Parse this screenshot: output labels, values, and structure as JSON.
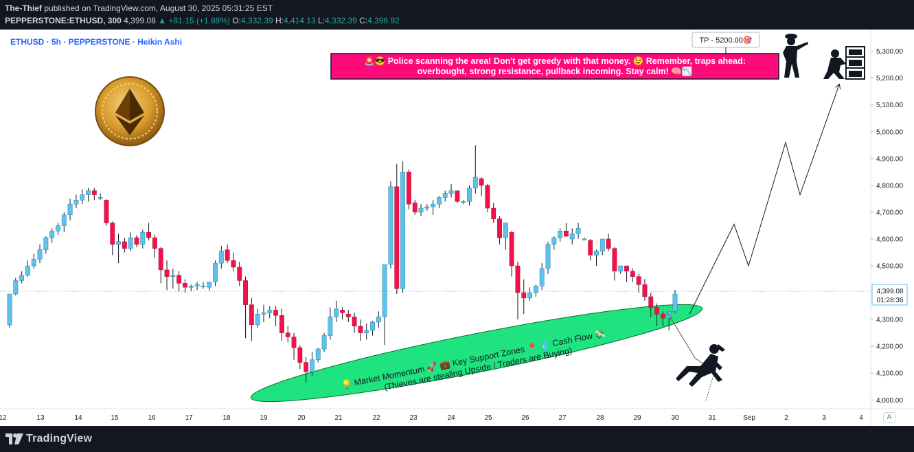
{
  "header": {
    "author": "The-Thief",
    "published_text": "published on TradingView.com, August 30, 2025 05:31:25 EST",
    "symbol": "PEPPERSTONE:ETHUSD, 300",
    "price": "4,399.08",
    "change_arrow": "▲",
    "change": "+81.15 (+1.88%)",
    "open_label": "O:",
    "open": "4,332.39",
    "high_label": "H:",
    "high": "4,414.13",
    "low_label": "L:",
    "low": "4,332.39",
    "close_label": "C:",
    "close": "4,396.92"
  },
  "legend": {
    "title": "ETHUSD · 5h · PEPPERSTONE · Heikin Ashi"
  },
  "annotations": {
    "tp_label": "TP - 5200.00🎯",
    "warning_line1": "🚨😎 Police scanning the area! Don't get greedy with that money. 😉 Remember, traps ahead:",
    "warning_line2": "overbought, strong resistance, pullback incoming. Stay calm! 🧠📉",
    "support_line1": "💡 Market Momentum 🚀 💼 Key Support Zones 📍 💧 Cash Flow 💸",
    "support_line2": "(Thieves are stealing Upside / Traders are Buying)"
  },
  "price_axis": {
    "ticks": [
      "5,300.00",
      "5,200.00",
      "5,100.00",
      "5,000.00",
      "4,900.00",
      "4,800.00",
      "4,700.00",
      "4,600.00",
      "4,500.00",
      "4,400.00",
      "4,300.00",
      "4,200.00",
      "4,100.00",
      "4,000.00"
    ],
    "tick_values": [
      5300,
      5200,
      5100,
      5000,
      4900,
      4800,
      4700,
      4600,
      4500,
      4400,
      4300,
      4200,
      4100,
      4000
    ],
    "last_price": "4,399.08",
    "countdown": "01:28:36",
    "auto_label": "A"
  },
  "time_axis": {
    "labels": [
      "12",
      "13",
      "14",
      "15",
      "16",
      "17",
      "18",
      "19",
      "20",
      "21",
      "22",
      "23",
      "24",
      "25",
      "26",
      "27",
      "28",
      "29",
      "30",
      "31",
      "Sep",
      "2",
      "3",
      "4"
    ]
  },
  "footer": {
    "brand": "TradingView"
  },
  "colors": {
    "up": "#5ec2ec",
    "down": "#f2124a",
    "support_zone": "#1fe37f",
    "warning_bg": "#ff0a7b",
    "last_price_line": "#5ec2ec"
  },
  "icons": [
    "ethereum-coin-icon",
    "police-silhouette-icon",
    "thief-at-safe-icon",
    "climbing-thief-icon",
    "tradingview-logo-icon"
  ],
  "chart_data": {
    "type": "candlestick",
    "title": "ETHUSD · 5h · PEPPERSTONE · Heikin Ashi",
    "ylim": [
      3970,
      5350
    ],
    "projection": [
      {
        "date": "Aug 30",
        "value": 4320
      },
      {
        "date": "Aug 31",
        "value": 4655
      },
      {
        "date": "Sep 1",
        "value": 4500
      },
      {
        "date": "Sep 2",
        "value": 4960
      },
      {
        "date": "Sep 2",
        "value": 4765
      },
      {
        "date": "Sep 3",
        "value": 5175
      }
    ],
    "support_zone": {
      "from": "Aug 19",
      "to": "Aug 30",
      "low": 4060,
      "high": 4280
    },
    "target": 5200,
    "candles": [
      [
        4280,
        4395,
        4270,
        4395
      ],
      [
        4395,
        4455,
        4390,
        4445
      ],
      [
        4445,
        4480,
        4435,
        4465
      ],
      [
        4465,
        4520,
        4460,
        4500
      ],
      [
        4500,
        4545,
        4490,
        4525
      ],
      [
        4525,
        4580,
        4510,
        4560
      ],
      [
        4560,
        4610,
        4545,
        4605
      ],
      [
        4605,
        4640,
        4585,
        4630
      ],
      [
        4630,
        4660,
        4615,
        4650
      ],
      [
        4650,
        4700,
        4625,
        4690
      ],
      [
        4690,
        4750,
        4670,
        4730
      ],
      [
        4730,
        4765,
        4715,
        4745
      ],
      [
        4745,
        4785,
        4730,
        4765
      ],
      [
        4765,
        4790,
        4740,
        4780
      ],
      [
        4780,
        4790,
        4745,
        4765
      ],
      [
        4755,
        4770,
        4745,
        4755
      ],
      [
        4745,
        4748,
        4650,
        4660
      ],
      [
        4660,
        4665,
        4540,
        4580
      ],
      [
        4580,
        4620,
        4510,
        4590
      ],
      [
        4590,
        4605,
        4550,
        4565
      ],
      [
        4565,
        4625,
        4555,
        4605
      ],
      [
        4605,
        4615,
        4570,
        4580
      ],
      [
        4580,
        4635,
        4565,
        4625
      ],
      [
        4625,
        4660,
        4595,
        4605
      ],
      [
        4605,
        4615,
        4530,
        4565
      ],
      [
        4565,
        4570,
        4435,
        4485
      ],
      [
        4485,
        4520,
        4410,
        4460
      ],
      [
        4460,
        4490,
        4415,
        4465
      ],
      [
        4465,
        4480,
        4405,
        4435
      ],
      [
        4435,
        4450,
        4400,
        4420
      ],
      [
        4420,
        4430,
        4405,
        4425
      ],
      [
        4425,
        4440,
        4410,
        4430
      ],
      [
        4425,
        4440,
        4415,
        4425
      ],
      [
        4420,
        4440,
        4410,
        4440
      ],
      [
        4440,
        4520,
        4425,
        4510
      ],
      [
        4510,
        4575,
        4490,
        4555
      ],
      [
        4560,
        4580,
        4510,
        4520
      ],
      [
        4520,
        4550,
        4480,
        4495
      ],
      [
        4495,
        4515,
        4425,
        4445
      ],
      [
        4445,
        4460,
        4230,
        4355
      ],
      [
        4355,
        4380,
        4220,
        4280
      ],
      [
        4280,
        4340,
        4270,
        4320
      ],
      [
        4320,
        4355,
        4290,
        4325
      ],
      [
        4325,
        4350,
        4305,
        4335
      ],
      [
        4335,
        4350,
        4275,
        4315
      ],
      [
        4315,
        4340,
        4220,
        4250
      ],
      [
        4250,
        4275,
        4215,
        4235
      ],
      [
        4235,
        4250,
        4150,
        4195
      ],
      [
        4195,
        4205,
        4115,
        4140
      ],
      [
        4140,
        4160,
        4065,
        4105
      ],
      [
        4105,
        4180,
        4090,
        4150
      ],
      [
        4150,
        4195,
        4140,
        4190
      ],
      [
        4190,
        4250,
        4180,
        4240
      ],
      [
        4240,
        4345,
        4225,
        4310
      ],
      [
        4310,
        4370,
        4290,
        4340
      ],
      [
        4335,
        4345,
        4300,
        4325
      ],
      [
        4320,
        4335,
        4290,
        4310
      ],
      [
        4310,
        4325,
        4250,
        4275
      ],
      [
        4275,
        4300,
        4220,
        4250
      ],
      [
        4250,
        4285,
        4225,
        4260
      ],
      [
        4260,
        4295,
        4240,
        4290
      ],
      [
        4290,
        4330,
        4270,
        4310
      ],
      [
        4310,
        4505,
        4205,
        4505
      ],
      [
        4505,
        4815,
        4490,
        4795
      ],
      [
        4795,
        4880,
        4395,
        4415
      ],
      [
        4415,
        4890,
        4400,
        4850
      ],
      [
        4850,
        4860,
        4710,
        4730
      ],
      [
        4735,
        4745,
        4690,
        4700
      ],
      [
        4700,
        4730,
        4685,
        4715
      ],
      [
        4715,
        4730,
        4705,
        4720
      ],
      [
        4720,
        4745,
        4690,
        4730
      ],
      [
        4730,
        4760,
        4715,
        4755
      ],
      [
        4755,
        4780,
        4740,
        4770
      ],
      [
        4770,
        4805,
        4755,
        4780
      ],
      [
        4780,
        4780,
        4735,
        4740
      ],
      [
        4740,
        4745,
        4730,
        4740
      ],
      [
        4740,
        4800,
        4725,
        4790
      ],
      [
        4790,
        4950,
        4770,
        4830
      ],
      [
        4825,
        4830,
        4760,
        4800
      ],
      [
        4800,
        4805,
        4700,
        4715
      ],
      [
        4715,
        4735,
        4660,
        4675
      ],
      [
        4675,
        4685,
        4580,
        4605
      ],
      [
        4605,
        4660,
        4560,
        4660
      ],
      [
        4625,
        4630,
        4460,
        4500
      ],
      [
        4500,
        4515,
        4300,
        4400
      ],
      [
        4400,
        4450,
        4320,
        4380
      ],
      [
        4380,
        4420,
        4370,
        4400
      ],
      [
        4400,
        4430,
        4385,
        4425
      ],
      [
        4425,
        4510,
        4410,
        4490
      ],
      [
        4490,
        4590,
        4470,
        4580
      ],
      [
        4580,
        4610,
        4560,
        4605
      ],
      [
        4605,
        4640,
        4590,
        4630
      ],
      [
        4630,
        4660,
        4610,
        4610
      ],
      [
        4600,
        4640,
        4580,
        4620
      ],
      [
        4620,
        4660,
        4600,
        4640
      ],
      [
        4600,
        4605,
        4595,
        4600
      ],
      [
        4595,
        4600,
        4520,
        4540
      ],
      [
        4540,
        4560,
        4500,
        4555
      ],
      [
        4555,
        4600,
        4540,
        4600
      ],
      [
        4600,
        4620,
        4555,
        4565
      ],
      [
        4565,
        4570,
        4445,
        4480
      ],
      [
        4480,
        4500,
        4470,
        4500
      ],
      [
        4500,
        4500,
        4440,
        4480
      ],
      [
        4480,
        4490,
        4440,
        4460
      ],
      [
        4460,
        4470,
        4400,
        4430
      ],
      [
        4430,
        4450,
        4370,
        4385
      ],
      [
        4385,
        4400,
        4310,
        4345
      ],
      [
        4345,
        4360,
        4275,
        4320
      ],
      [
        4320,
        4330,
        4275,
        4305
      ],
      [
        4305,
        4320,
        4260,
        4330
      ],
      [
        4330,
        4410,
        4325,
        4395
      ]
    ]
  }
}
